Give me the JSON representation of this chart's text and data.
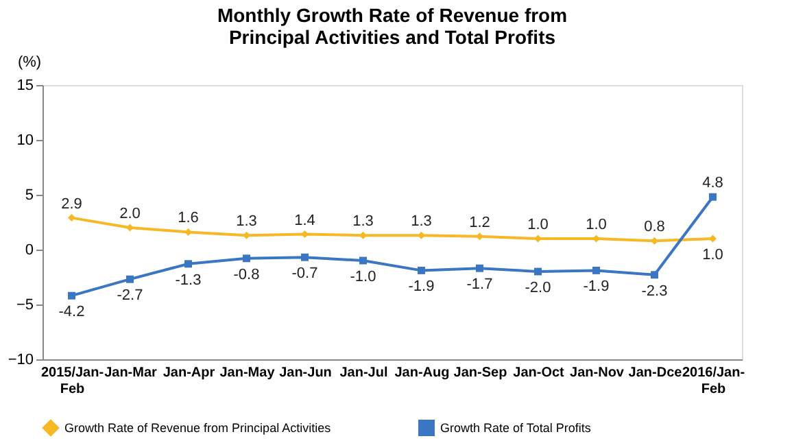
{
  "chart_data": {
    "type": "line",
    "title": "Monthly Growth Rate of Revenue from\nPrincipal Activities  and Total Profits",
    "ylabel": "(%)",
    "categories": [
      "2015/Jan-Feb",
      "Jan-Mar",
      "Jan-Apr",
      "Jan-May",
      "Jan-Jun",
      "Jan-Jul",
      "Jan-Aug",
      "Jan-Sep",
      "Jan-Oct",
      "Jan-Nov",
      "Jan-Dce",
      "2016/Jan-Feb"
    ],
    "series": [
      {
        "name": "Growth Rate of Revenue from Principal Activities",
        "color": "#f7b825",
        "marker": "diamond",
        "values": [
          2.9,
          2.0,
          1.6,
          1.3,
          1.4,
          1.3,
          1.3,
          1.2,
          1.0,
          1.0,
          0.8,
          1.0
        ],
        "value_labels": [
          "2.9",
          "2.0",
          "1.6",
          "1.3",
          "1.4",
          "1.3",
          "1.3",
          "1.2",
          "1.0",
          "1.0",
          "0.8",
          "1.0"
        ]
      },
      {
        "name": "Growth Rate of Total Profits",
        "color": "#3a76c2",
        "marker": "square",
        "values": [
          -4.2,
          -2.7,
          -1.3,
          -0.8,
          -0.7,
          -1.0,
          -1.9,
          -1.7,
          -2.0,
          -1.9,
          -2.3,
          4.8
        ],
        "value_labels": [
          "-4.2",
          "-2.7",
          "-1.3",
          "-0.8",
          "-0.7",
          "-1.0",
          "-1.9",
          "-1.7",
          "-2.0",
          "-1.9",
          "-2.3",
          "4.8"
        ]
      }
    ],
    "ylim": [
      -10,
      15
    ],
    "yticks": [
      -10,
      -5,
      0,
      5,
      10,
      15
    ],
    "grid": false,
    "legend": "bottom",
    "data_labels": true,
    "line_style": "solid"
  }
}
